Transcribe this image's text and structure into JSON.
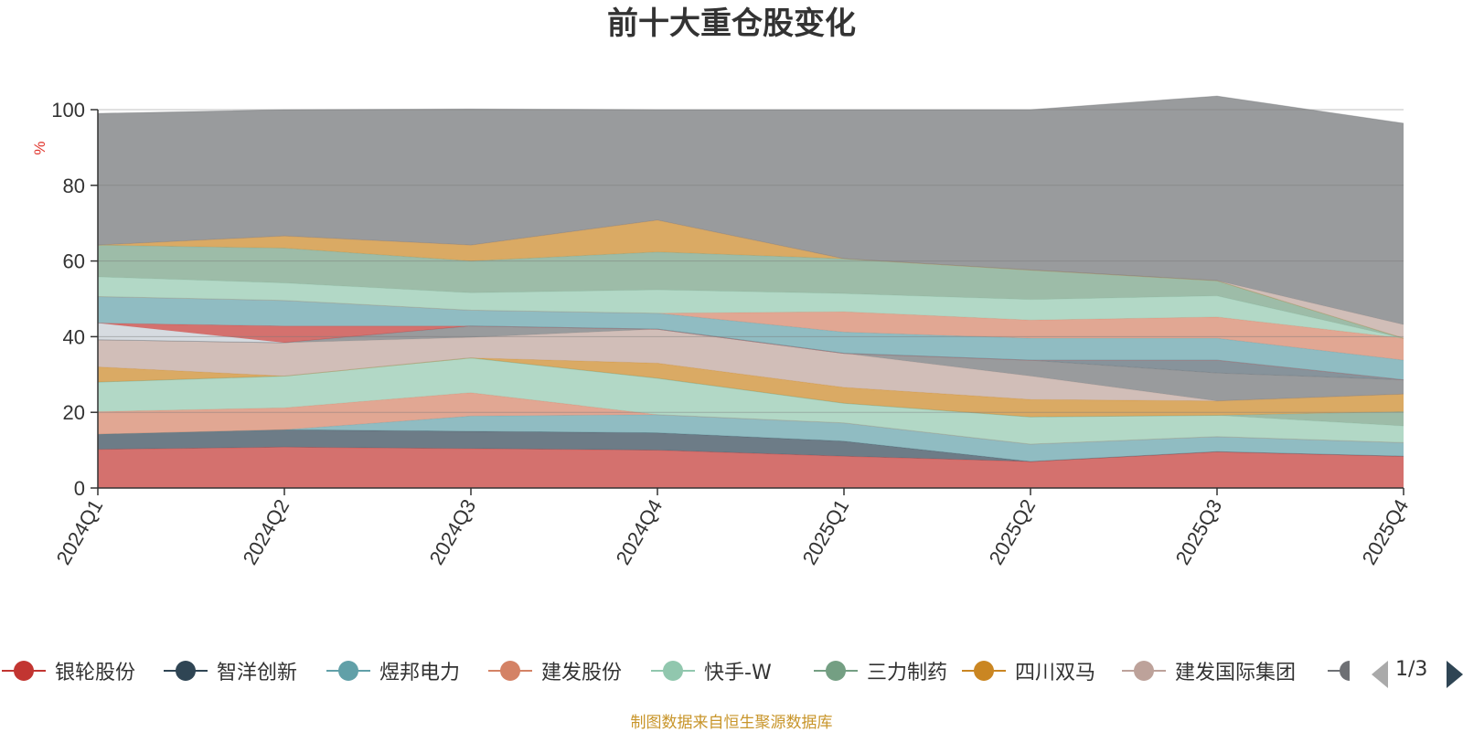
{
  "chart_data": {
    "type": "area",
    "title": "前十大重仓股变化",
    "ylabel": "%",
    "xlabel": "",
    "ylim": [
      0,
      100
    ],
    "yticks": [
      0,
      20,
      40,
      60,
      80,
      100
    ],
    "categories": [
      "2024Q1",
      "2024Q2",
      "2024Q3",
      "2024Q4",
      "2025Q1",
      "2025Q2",
      "2025Q3",
      "2025Q4"
    ],
    "stacked": true,
    "series": [
      {
        "name": "银轮股份",
        "color": "#c23531",
        "values": [
          10.2,
          10.8,
          10.4,
          10.0,
          8.4,
          7.0,
          9.6,
          8.4
        ]
      },
      {
        "name": "智洋创新",
        "color": "#2f4554",
        "values": [
          4.0,
          4.6,
          4.6,
          4.6,
          4.0,
          0,
          0,
          0
        ]
      },
      {
        "name": "煜邦电力",
        "color": "#61a0a8",
        "values": [
          0,
          0,
          4.0,
          4.8,
          4.8,
          4.6,
          4.0,
          3.6
        ]
      },
      {
        "name": "建发股份",
        "color": "#d48265",
        "values": [
          6.0,
          5.8,
          6.2,
          0,
          0,
          0,
          0,
          0
        ]
      },
      {
        "name": "快手-W",
        "color": "#91c7ae",
        "values": [
          7.8,
          8.4,
          9.2,
          9.6,
          5.2,
          7.2,
          5.6,
          4.4
        ]
      },
      {
        "name": "三力制药",
        "color": "#749f83",
        "values": [
          0,
          0,
          0,
          0,
          0,
          0,
          0,
          3.8
        ]
      },
      {
        "name": "四川双马",
        "color": "#ca8622",
        "values": [
          4.0,
          0,
          0,
          4.0,
          4.2,
          4.6,
          3.8,
          4.6
        ]
      },
      {
        "name": "建发国际集团",
        "color": "#bda29a",
        "values": [
          7.2,
          8.8,
          5.4,
          9.0,
          9.0,
          6.2,
          0,
          0
        ]
      },
      {
        "name": "",
        "color": "#6e7074",
        "values": [
          0,
          0,
          3.0,
          0,
          0,
          4.2,
          7.4,
          3.8
        ]
      },
      {
        "name": "",
        "color": "#546570",
        "values": [
          0,
          0,
          0,
          0,
          0,
          0,
          3.4,
          0
        ]
      },
      {
        "name": "",
        "color": "#c4ccd3",
        "values": [
          4.4,
          0,
          0,
          0,
          0,
          0,
          0,
          0
        ]
      },
      {
        "name": "",
        "color": "#c23531",
        "values": [
          0,
          4.4,
          0,
          0,
          0,
          0,
          0,
          0
        ]
      },
      {
        "name": "",
        "color": "#61a0a8",
        "values": [
          7.0,
          6.8,
          4.2,
          4.2,
          5.6,
          5.8,
          5.8,
          5.2
        ]
      },
      {
        "name": "",
        "color": "#d48265",
        "values": [
          0,
          0,
          0,
          0,
          5.4,
          4.8,
          5.6,
          5.8
        ]
      },
      {
        "name": "",
        "color": "#91c7ae",
        "values": [
          5.2,
          4.6,
          4.6,
          6.2,
          4.8,
          5.4,
          5.6,
          0
        ]
      },
      {
        "name": "",
        "color": "#749f83",
        "values": [
          8.4,
          9.2,
          8.4,
          10.0,
          9.2,
          7.8,
          4.0,
          0
        ]
      },
      {
        "name": "",
        "color": "#ca8622",
        "values": [
          0,
          3.2,
          4.2,
          8.4,
          0,
          0,
          0,
          0
        ]
      },
      {
        "name": "",
        "color": "#bda29a",
        "values": [
          0,
          0,
          0,
          0,
          0,
          0,
          0,
          3.6
        ]
      },
      {
        "name": "",
        "color": "#6e7074",
        "values": [
          34.8,
          33.4,
          36.0,
          29.2,
          39.4,
          42.4,
          48.8,
          53.2
        ]
      }
    ]
  },
  "legend": {
    "page": "1/3",
    "icons": [
      "triangle-left-icon",
      "triangle-right-icon"
    ],
    "items": [
      {
        "label": "银轮股份",
        "color": "#c23531"
      },
      {
        "label": "智洋创新",
        "color": "#2f4554"
      },
      {
        "label": "煜邦电力",
        "color": "#61a0a8"
      },
      {
        "label": "建发股份",
        "color": "#d48265"
      },
      {
        "label": "快手-W",
        "color": "#91c7ae"
      },
      {
        "label": "三力制药",
        "color": "#749f83"
      },
      {
        "label": "四川双马",
        "color": "#ca8622"
      },
      {
        "label": "建发国际集团",
        "color": "#bda29a"
      },
      {
        "label": "",
        "color": "#6e7074"
      }
    ]
  },
  "footer": {
    "note": "制图数据来自恒生聚源数据库",
    "color": "#c8952a"
  }
}
